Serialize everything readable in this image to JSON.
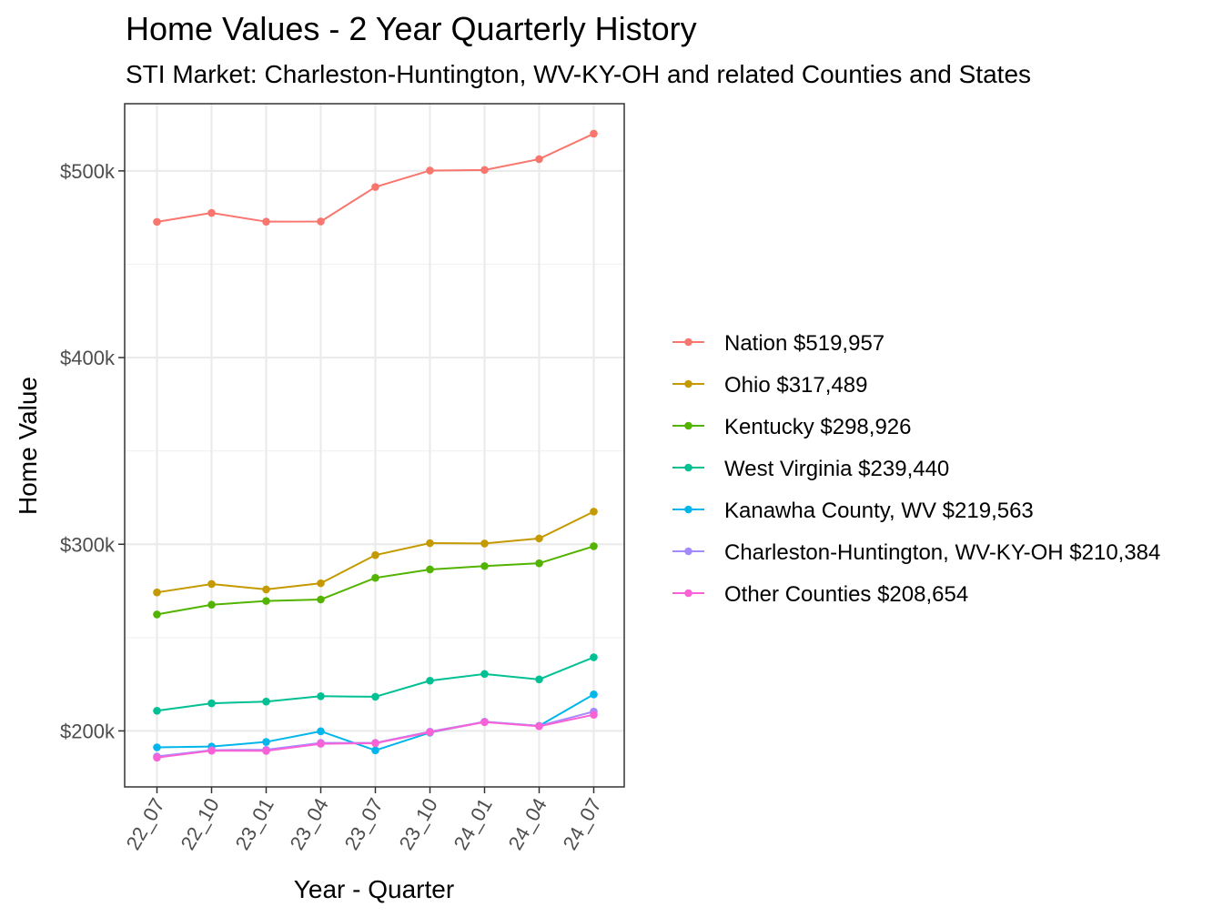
{
  "chart_data": {
    "type": "line",
    "title": "Home Values - 2 Year Quarterly History",
    "subtitle": "STI Market: Charleston-Huntington, WV-KY-OH and related Counties and States",
    "xlabel": "Year - Quarter",
    "ylabel": "Home Value",
    "categories": [
      "22_07",
      "22_10",
      "23_01",
      "23_04",
      "23_07",
      "23_10",
      "24_01",
      "24_04",
      "24_07"
    ],
    "ylim": [
      170000,
      536000
    ],
    "yticks": [
      200000,
      300000,
      400000,
      500000
    ],
    "ytick_labels": [
      "$200k",
      "$300k",
      "$400k",
      "$500k"
    ],
    "grid": true,
    "legend_position": "right",
    "series": [
      {
        "name": "Nation $519,957",
        "color": "#F8766D",
        "values": [
          472700,
          477500,
          472800,
          472900,
          491400,
          500200,
          500500,
          506300,
          519957
        ]
      },
      {
        "name": "Ohio $317,489",
        "color": "#C49A00",
        "values": [
          274200,
          278700,
          275800,
          279100,
          294200,
          300600,
          300400,
          303100,
          317489
        ]
      },
      {
        "name": "Kentucky $298,926",
        "color": "#53B400",
        "values": [
          262400,
          267600,
          269600,
          270400,
          282000,
          286500,
          288300,
          289800,
          298926
        ]
      },
      {
        "name": "West Virginia $239,440",
        "color": "#00C094",
        "values": [
          210800,
          214800,
          215700,
          218600,
          218300,
          226900,
          230500,
          227600,
          239440
        ]
      },
      {
        "name": "Kanawha County, WV $219,563",
        "color": "#00B6EB",
        "values": [
          191200,
          191600,
          194100,
          199800,
          189600,
          199100,
          204900,
          202700,
          219563
        ]
      },
      {
        "name": "Charleston-Huntington, WV-KY-OH $210,384",
        "color": "#A58AFF",
        "values": [
          186300,
          189700,
          189900,
          193600,
          193600,
          199600,
          204900,
          202700,
          210384
        ]
      },
      {
        "name": "Other Counties $208,654",
        "color": "#FB61D7",
        "values": [
          185700,
          189400,
          189300,
          193100,
          193400,
          199300,
          204700,
          202500,
          208654
        ]
      }
    ]
  }
}
